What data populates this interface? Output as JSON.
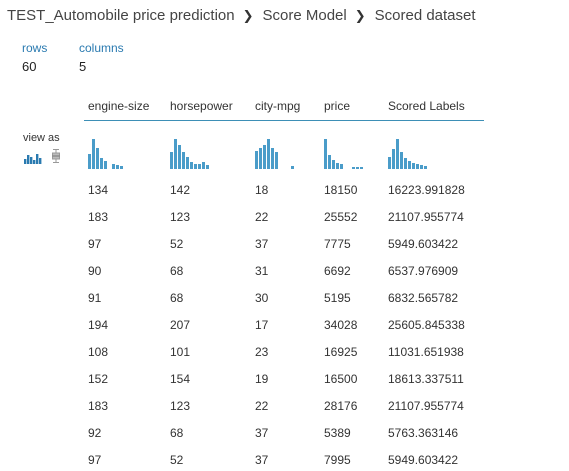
{
  "breadcrumb": [
    "TEST_Automobile price prediction",
    "Score Model",
    "Scored dataset"
  ],
  "stats": {
    "rows_label": "rows",
    "rows_value": "60",
    "columns_label": "columns",
    "columns_value": "5"
  },
  "view_as": {
    "label": "view as",
    "icons": [
      "histogram-icon",
      "boxplot-icon"
    ]
  },
  "columns": [
    "engine-size",
    "horsepower",
    "city-mpg",
    "price",
    "Scored Labels"
  ],
  "histograms": [
    [
      0.5,
      1.0,
      0.7,
      0.35,
      0.25,
      0,
      0.15,
      0.12,
      0.1
    ],
    [
      0.55,
      1.0,
      0.8,
      0.55,
      0.4,
      0.22,
      0.15,
      0.18,
      0.22,
      0.12
    ],
    [
      0.6,
      0.7,
      0.8,
      1.0,
      0.7,
      0.55,
      0,
      0,
      0,
      0.1
    ],
    [
      1.0,
      0.45,
      0.3,
      0.2,
      0.18,
      0,
      0,
      0.08,
      0.08,
      0.08
    ],
    [
      0.4,
      0.65,
      1.0,
      0.55,
      0.35,
      0.25,
      0.2,
      0.15,
      0.12,
      0.1
    ]
  ],
  "accent_color": "#4a9cc9",
  "rows": [
    [
      "134",
      "142",
      "18",
      "18150",
      "16223.991828"
    ],
    [
      "183",
      "123",
      "22",
      "25552",
      "21107.955774"
    ],
    [
      "97",
      "52",
      "37",
      "7775",
      "5949.603422"
    ],
    [
      "90",
      "68",
      "31",
      "6692",
      "6537.976909"
    ],
    [
      "91",
      "68",
      "30",
      "5195",
      "6832.565782"
    ],
    [
      "194",
      "207",
      "17",
      "34028",
      "25605.845338"
    ],
    [
      "108",
      "101",
      "23",
      "16925",
      "11031.651938"
    ],
    [
      "152",
      "154",
      "19",
      "16500",
      "18613.337511"
    ],
    [
      "183",
      "123",
      "22",
      "28176",
      "21107.955774"
    ],
    [
      "92",
      "68",
      "37",
      "5389",
      "5763.363146"
    ],
    [
      "97",
      "52",
      "37",
      "7995",
      "5949.603422"
    ]
  ]
}
